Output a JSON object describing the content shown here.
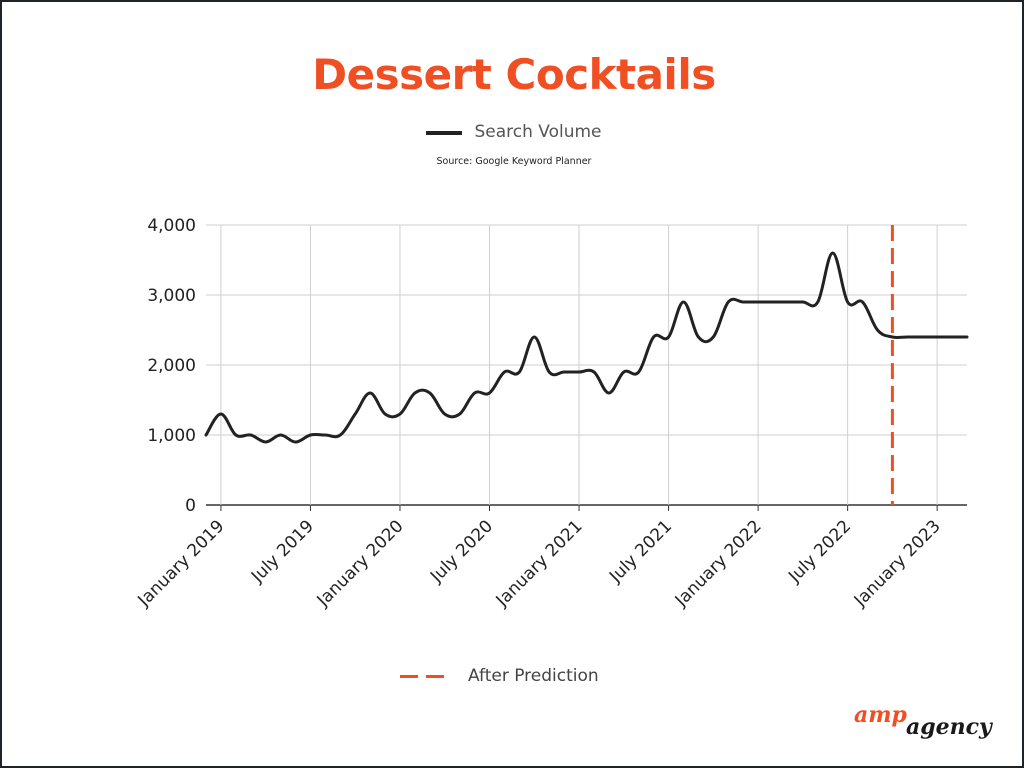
{
  "chart_data": {
    "type": "line",
    "title": "Dessert Cocktails",
    "source": "Source: Google Keyword Planner",
    "xlabel": "",
    "ylabel": "",
    "ylim": [
      0,
      4000
    ],
    "y_ticks": [
      0,
      1000,
      2000,
      3000,
      4000
    ],
    "y_tick_labels": [
      "0",
      "1,000",
      "2,000",
      "3,000",
      "4,000"
    ],
    "x_ticks": [
      "2019-01",
      "2019-07",
      "2020-01",
      "2020-07",
      "2021-01",
      "2021-07",
      "2022-01",
      "2022-07",
      "2023-01"
    ],
    "x_tick_labels": [
      "January 2019",
      "July 2019",
      "January 2020",
      "July 2020",
      "January 2021",
      "July 2021",
      "January 2022",
      "July 2022",
      "January 2023"
    ],
    "x_range": [
      "2018-12",
      "2023-03"
    ],
    "grid": true,
    "series": [
      {
        "name": "Search Volume",
        "color": "#222222",
        "x": [
          "2018-12",
          "2019-01",
          "2019-02",
          "2019-03",
          "2019-04",
          "2019-05",
          "2019-06",
          "2019-07",
          "2019-08",
          "2019-09",
          "2019-10",
          "2019-11",
          "2019-12",
          "2020-01",
          "2020-02",
          "2020-03",
          "2020-04",
          "2020-05",
          "2020-06",
          "2020-07",
          "2020-08",
          "2020-09",
          "2020-10",
          "2020-11",
          "2020-12",
          "2021-01",
          "2021-02",
          "2021-03",
          "2021-04",
          "2021-05",
          "2021-06",
          "2021-07",
          "2021-08",
          "2021-09",
          "2021-10",
          "2021-11",
          "2021-12",
          "2022-01",
          "2022-02",
          "2022-03",
          "2022-04",
          "2022-05",
          "2022-06",
          "2022-07",
          "2022-08",
          "2022-09",
          "2022-10",
          "2022-11",
          "2022-12",
          "2023-01",
          "2023-02",
          "2023-03"
        ],
        "values": [
          1000,
          1300,
          1000,
          1000,
          900,
          1000,
          900,
          1000,
          1000,
          1000,
          1300,
          1600,
          1300,
          1300,
          1600,
          1600,
          1300,
          1300,
          1600,
          1600,
          1900,
          1900,
          2400,
          1900,
          1900,
          1900,
          1900,
          1600,
          1900,
          1900,
          2400,
          2400,
          2900,
          2400,
          2400,
          2900,
          2900,
          2900,
          2900,
          2900,
          2900,
          2900,
          3600,
          2900,
          2900,
          2500,
          2400,
          2400,
          2400,
          2400,
          2400,
          2400
        ]
      }
    ],
    "annotations": [
      {
        "label": "After Prediction",
        "x": "2022-10",
        "style": "dashed",
        "color": "#f04e23"
      }
    ]
  },
  "brand": {
    "amp": "amp",
    "agency": "agency"
  }
}
